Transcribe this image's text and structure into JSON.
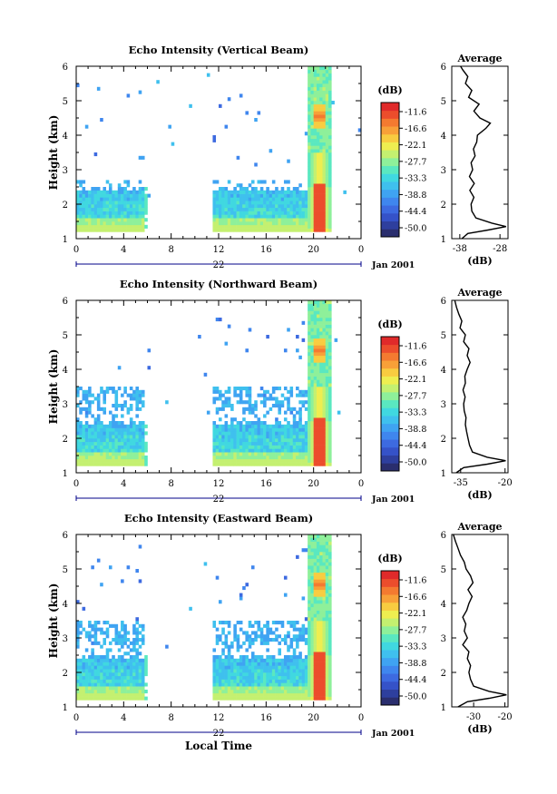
{
  "figure": {
    "xlabel": "Local Time",
    "date_label": "Jan 2001",
    "colorbar_unit": "(dB)",
    "colorbar_ticks": [
      "-11.6",
      "-16.6",
      "-22.1",
      "-27.7",
      "-33.3",
      "-38.8",
      "-44.4",
      "-50.0"
    ],
    "colorscale": [
      "#2a2e6e",
      "#2e3f9e",
      "#3552c8",
      "#3d6ae0",
      "#3f86ee",
      "#3fa3f2",
      "#3fc0ee",
      "#40d8e0",
      "#5ae8c0",
      "#8ef09a",
      "#c4f070",
      "#eeee50",
      "#f8cc40",
      "#f8a038",
      "#f47a30",
      "#ec4d2c",
      "#e02a2a"
    ],
    "colors": {
      "axis": "#000000",
      "time_axis": "#000088"
    }
  },
  "chart_data": [
    {
      "type": "heatmap",
      "title": "Echo Intensity (Vertical Beam)",
      "ylabel": "Height (km)",
      "x_ticks": [
        "0",
        "4",
        "8",
        "12",
        "16",
        "20",
        "0"
      ],
      "x_sublabel": "22",
      "y_ticks": [
        "1",
        "2",
        "3",
        "4",
        "5",
        "6"
      ],
      "xlim": [
        0,
        24
      ],
      "ylim": [
        1,
        6
      ],
      "profile": {
        "title": "Average",
        "xlabel": "(dB)",
        "x_ticks": [
          "-38",
          "-28"
        ],
        "xlim": [
          -40,
          -26
        ],
        "height": [
          1.0,
          1.15,
          1.25,
          1.35,
          1.45,
          1.6,
          1.8,
          2.0,
          2.2,
          2.4,
          2.6,
          2.8,
          3.0,
          3.2,
          3.4,
          3.6,
          3.8,
          4.0,
          4.2,
          4.35,
          4.5,
          4.7,
          4.9,
          5.1,
          5.3,
          5.5,
          5.7,
          5.9,
          6.0
        ],
        "values": [
          -37.5,
          -36,
          -31,
          -26.5,
          -30,
          -34,
          -35,
          -35.2,
          -34.5,
          -35.5,
          -34.4,
          -35.6,
          -34.8,
          -35.2,
          -34.2,
          -34.6,
          -33.8,
          -33.6,
          -31.5,
          -30.4,
          -33,
          -34.5,
          -33.2,
          -35.8,
          -35,
          -36.6,
          -36,
          -37.3,
          -37.8
        ]
      }
    },
    {
      "type": "heatmap",
      "title": "Echo Intensity (Northward Beam)",
      "ylabel": "Height (km)",
      "x_ticks": [
        "0",
        "4",
        "8",
        "12",
        "16",
        "20",
        "0"
      ],
      "x_sublabel": "22",
      "y_ticks": [
        "1",
        "2",
        "3",
        "4",
        "5",
        "6"
      ],
      "xlim": [
        0,
        24
      ],
      "ylim": [
        1,
        6
      ],
      "profile": {
        "title": "Average",
        "xlabel": "(dB)",
        "x_ticks": [
          "-35",
          "-20"
        ],
        "xlim": [
          -38,
          -19
        ],
        "height": [
          1.0,
          1.15,
          1.25,
          1.35,
          1.45,
          1.6,
          1.8,
          2.0,
          2.2,
          2.4,
          2.6,
          2.8,
          3.0,
          3.2,
          3.4,
          3.6,
          3.8,
          4.0,
          4.2,
          4.4,
          4.6,
          4.8,
          5.0,
          5.2,
          5.4,
          5.6,
          5.8,
          6.0
        ],
        "values": [
          -36.5,
          -34,
          -26,
          -19.8,
          -26,
          -31,
          -32,
          -32.5,
          -33,
          -33.4,
          -33.2,
          -33.8,
          -34,
          -33.5,
          -34.2,
          -33.4,
          -33.6,
          -32.8,
          -31.8,
          -32.8,
          -32.2,
          -34,
          -33.4,
          -35.2,
          -34.6,
          -35.6,
          -36.4,
          -37
        ]
      }
    },
    {
      "type": "heatmap",
      "title": "Echo Intensity (Eastward Beam)",
      "ylabel": "Height (km)",
      "x_ticks": [
        "0",
        "4",
        "8",
        "12",
        "16",
        "20",
        "0"
      ],
      "x_sublabel": "22",
      "y_ticks": [
        "1",
        "2",
        "3",
        "4",
        "5",
        "6"
      ],
      "xlim": [
        0,
        24
      ],
      "ylim": [
        1,
        6
      ],
      "profile": {
        "title": "Average",
        "xlabel": "(dB)",
        "x_ticks": [
          "-30",
          "-20"
        ],
        "xlim": [
          -37,
          -19
        ],
        "height": [
          1.0,
          1.15,
          1.25,
          1.35,
          1.45,
          1.6,
          1.8,
          2.0,
          2.2,
          2.4,
          2.6,
          2.8,
          3.0,
          3.2,
          3.4,
          3.6,
          3.8,
          4.0,
          4.2,
          4.4,
          4.6,
          4.8,
          5.0,
          5.2,
          5.4,
          5.6,
          5.8,
          6.0
        ],
        "values": [
          -35,
          -32,
          -25,
          -19.5,
          -25,
          -30,
          -31,
          -31.5,
          -31,
          -32,
          -31.5,
          -33.5,
          -32,
          -33,
          -32.5,
          -33.5,
          -32.2,
          -31.5,
          -30.5,
          -31.8,
          -30.2,
          -31,
          -32.4,
          -33,
          -34.2,
          -35,
          -35.8,
          -36.5
        ]
      }
    }
  ]
}
